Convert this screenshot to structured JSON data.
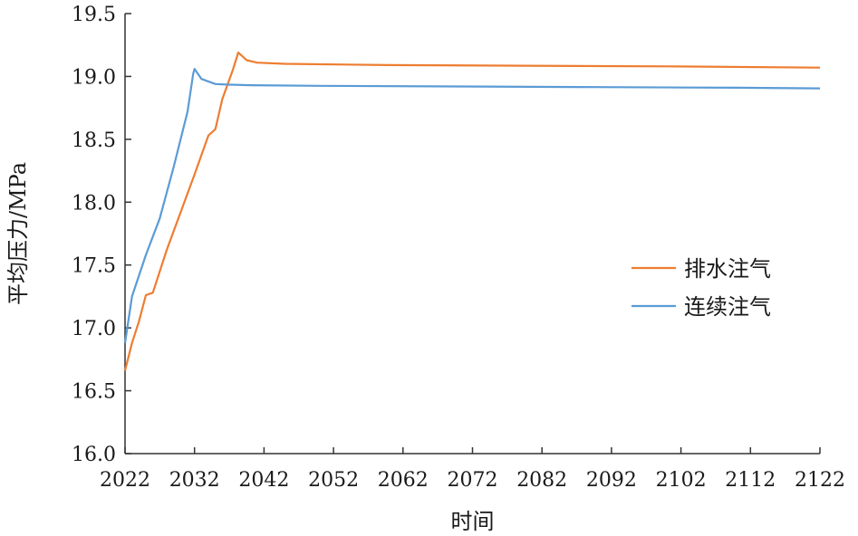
{
  "chart_data": {
    "type": "line",
    "title": "",
    "xlabel": "时间",
    "ylabel": "平均压力/MPa",
    "xlim": [
      2022,
      2122
    ],
    "ylim": [
      16.0,
      19.5
    ],
    "xticks": [
      2022,
      2032,
      2042,
      2052,
      2062,
      2072,
      2082,
      2092,
      2102,
      2112,
      2122
    ],
    "yticks": [
      "16.0",
      "16.5",
      "17.0",
      "17.5",
      "18.0",
      "18.5",
      "19.0",
      "19.5"
    ],
    "grid": false,
    "legend_position": "right",
    "series": [
      {
        "name": "排水注气",
        "color": "#ED7D31",
        "points": [
          [
            2022,
            16.66
          ],
          [
            2023,
            16.88
          ],
          [
            2024,
            17.05
          ],
          [
            2025,
            17.26
          ],
          [
            2025.5,
            17.27
          ],
          [
            2026,
            17.28
          ],
          [
            2028,
            17.62
          ],
          [
            2030,
            17.92
          ],
          [
            2032,
            18.22
          ],
          [
            2034,
            18.53
          ],
          [
            2035,
            18.58
          ],
          [
            2036,
            18.82
          ],
          [
            2037.5,
            19.05
          ],
          [
            2038.3,
            19.19
          ],
          [
            2039.5,
            19.13
          ],
          [
            2041,
            19.11
          ],
          [
            2045,
            19.1
          ],
          [
            2060,
            19.09
          ],
          [
            2080,
            19.085
          ],
          [
            2100,
            19.08
          ],
          [
            2122,
            19.07
          ]
        ]
      },
      {
        "name": "连续注气",
        "color": "#5B9BD5",
        "points": [
          [
            2022,
            16.88
          ],
          [
            2023,
            17.25
          ],
          [
            2025,
            17.58
          ],
          [
            2027,
            17.87
          ],
          [
            2029,
            18.28
          ],
          [
            2031,
            18.72
          ],
          [
            2031.8,
            19.02
          ],
          [
            2032,
            19.06
          ],
          [
            2033,
            18.98
          ],
          [
            2035,
            18.94
          ],
          [
            2037,
            18.935
          ],
          [
            2040,
            18.93
          ],
          [
            2050,
            18.925
          ],
          [
            2070,
            18.92
          ],
          [
            2090,
            18.915
          ],
          [
            2110,
            18.91
          ],
          [
            2122,
            18.905
          ]
        ]
      }
    ]
  }
}
